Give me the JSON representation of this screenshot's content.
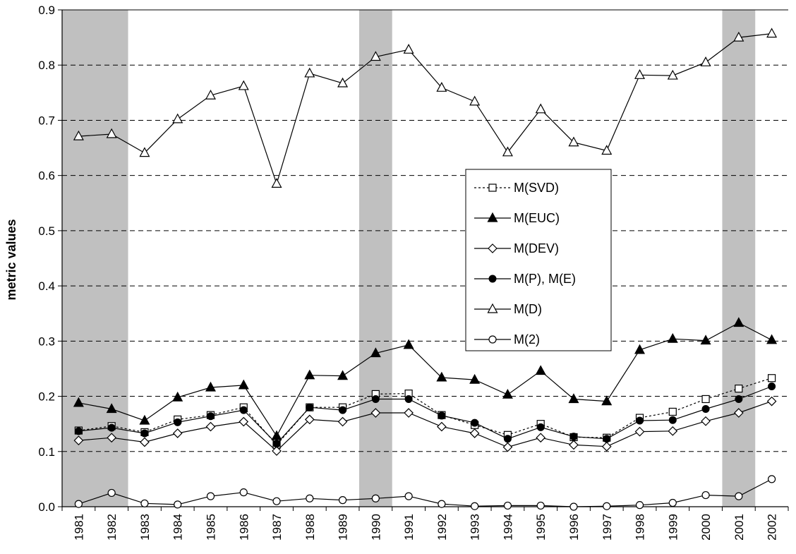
{
  "chart_data": {
    "type": "line",
    "title": "",
    "xlabel": "",
    "ylabel": "metric values",
    "ylim": [
      0,
      0.9
    ],
    "yticks": [
      "0.0",
      "0.1",
      "0.2",
      "0.3",
      "0.4",
      "0.5",
      "0.6",
      "0.7",
      "0.8",
      "0.9"
    ],
    "grid": "horizontal dashed",
    "legend_position": "center-right",
    "categories": [
      "1981",
      "1982",
      "1983",
      "1984",
      "1985",
      "1986",
      "1987",
      "1988",
      "1989",
      "1990",
      "1991",
      "1992",
      "1993",
      "1994",
      "1995",
      "1996",
      "1997",
      "1998",
      "1999",
      "2000",
      "2001",
      "2002"
    ],
    "shaded_periods": [
      [
        "1981",
        "1982"
      ],
      [
        "1990",
        "1990"
      ],
      [
        "2001",
        "2001"
      ]
    ],
    "series": [
      {
        "name": "M(SVD)",
        "marker": "square-open",
        "line": "dotted",
        "values": [
          0.138,
          0.146,
          0.135,
          0.158,
          0.166,
          0.18,
          0.112,
          0.18,
          0.18,
          0.204,
          0.205,
          0.166,
          0.148,
          0.13,
          0.15,
          0.126,
          0.125,
          0.161,
          0.172,
          0.195,
          0.214,
          0.233
        ]
      },
      {
        "name": "M(EUC)",
        "marker": "triangle-filled",
        "line": "solid",
        "values": [
          0.188,
          0.177,
          0.156,
          0.198,
          0.216,
          0.22,
          0.128,
          0.238,
          0.237,
          0.278,
          0.293,
          0.234,
          0.23,
          0.203,
          0.246,
          0.195,
          0.191,
          0.284,
          0.304,
          0.301,
          0.333,
          0.302
        ]
      },
      {
        "name": "M(DEV)",
        "marker": "diamond-open",
        "line": "solid",
        "values": [
          0.12,
          0.125,
          0.117,
          0.133,
          0.145,
          0.154,
          0.101,
          0.158,
          0.154,
          0.17,
          0.17,
          0.145,
          0.133,
          0.108,
          0.125,
          0.112,
          0.109,
          0.136,
          0.137,
          0.155,
          0.17,
          0.191
        ]
      },
      {
        "name": "M(P), M(E)",
        "marker": "circle-filled",
        "line": "solid",
        "values": [
          0.137,
          0.143,
          0.133,
          0.153,
          0.164,
          0.175,
          0.114,
          0.18,
          0.175,
          0.195,
          0.195,
          0.165,
          0.152,
          0.123,
          0.144,
          0.127,
          0.123,
          0.156,
          0.157,
          0.177,
          0.195,
          0.218
        ]
      },
      {
        "name": "M(D)",
        "marker": "triangle-open",
        "line": "solid",
        "values": [
          0.671,
          0.675,
          0.641,
          0.702,
          0.745,
          0.762,
          0.585,
          0.785,
          0.767,
          0.815,
          0.828,
          0.759,
          0.734,
          0.642,
          0.72,
          0.66,
          0.645,
          0.782,
          0.781,
          0.805,
          0.85,
          0.857
        ]
      },
      {
        "name": "M(2)",
        "marker": "circle-open",
        "line": "solid",
        "values": [
          0.005,
          0.025,
          0.006,
          0.004,
          0.019,
          0.026,
          0.01,
          0.015,
          0.012,
          0.015,
          0.019,
          0.005,
          0.001,
          0.002,
          0.002,
          0.0,
          0.001,
          0.003,
          0.007,
          0.021,
          0.019,
          0.05
        ]
      }
    ]
  }
}
